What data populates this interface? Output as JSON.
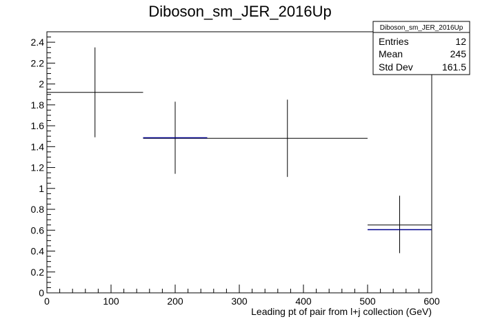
{
  "chart_data": {
    "type": "scatter",
    "title": "Diboson_sm_JER_2016Up",
    "xlabel": "Leading pt of pair from l+j collection (GeV)",
    "ylabel": "",
    "xlim": [
      0,
      600
    ],
    "ylim": [
      0,
      2.5
    ],
    "x_ticks": [
      0,
      100,
      200,
      300,
      400,
      500,
      600
    ],
    "y_ticks": [
      0,
      0.2,
      0.4,
      0.6,
      0.8,
      1,
      1.2,
      1.4,
      1.6,
      1.8,
      2,
      2.2,
      2.4
    ],
    "grid": false,
    "stats_box": {
      "title": "Diboson_sm_JER_2016Up",
      "rows": [
        {
          "label": "Entries",
          "value": "12"
        },
        {
          "label": "Mean",
          "value": "245"
        },
        {
          "label": "Std Dev",
          "value": "161.5"
        }
      ]
    },
    "series": [
      {
        "color": "#000000",
        "points": [
          {
            "x": 75,
            "xlow": 0,
            "xhigh": 150,
            "y": 1.92,
            "ylow": 1.49,
            "yhigh": 2.35
          },
          {
            "x": 200,
            "xlow": 150,
            "xhigh": 250,
            "y": 1.48,
            "ylow": 1.14,
            "yhigh": 1.83
          },
          {
            "x": 375,
            "xlow": 250,
            "xhigh": 500,
            "y": 1.48,
            "ylow": 1.11,
            "yhigh": 1.85
          },
          {
            "x": 550,
            "xlow": 500,
            "xhigh": 600,
            "y": 0.65,
            "ylow": 0.38,
            "yhigh": 0.93
          }
        ]
      },
      {
        "color": "#00008b",
        "segments": [
          {
            "xlow": 150,
            "xhigh": 250,
            "y": 1.485
          },
          {
            "xlow": 500,
            "xhigh": 600,
            "y": 0.605
          }
        ]
      }
    ]
  }
}
